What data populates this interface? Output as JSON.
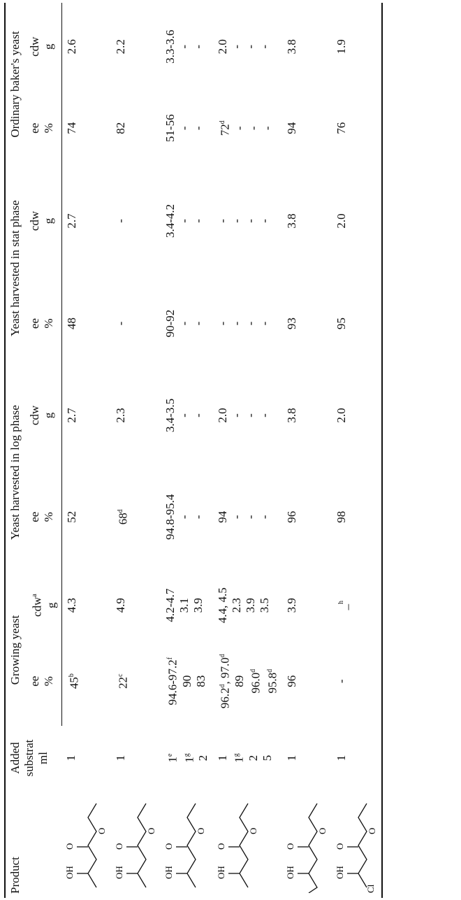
{
  "header": {
    "product": "Product",
    "substrate": [
      "Added",
      "substrat",
      "ml"
    ],
    "groups": [
      {
        "title": "Growing yeast",
        "ee": [
          "ee",
          "%"
        ],
        "cdw": [
          {
            "text": "cdw",
            "sup": "a"
          },
          "g"
        ]
      },
      {
        "title": "Yeast harvested in log phase",
        "ee": [
          "ee",
          "%"
        ],
        "cdw": [
          "cdw",
          "g"
        ]
      },
      {
        "title": "Yeast harvested in stat phase",
        "ee": [
          "ee",
          "%"
        ],
        "cdw": [
          "cdw",
          "g"
        ]
      },
      {
        "title": "Ordinary baker's yeast",
        "ee": [
          "ee",
          "%"
        ],
        "cdw": [
          "cdw",
          "g"
        ]
      }
    ]
  },
  "rows": [
    {
      "product": [
        "OH",
        "O",
        "O"
      ],
      "cells": [
        [
          "1"
        ],
        [
          {
            "text": "45",
            "sup": "b"
          }
        ],
        [
          "4.3"
        ],
        [
          "52"
        ],
        [
          "2.7"
        ],
        [
          "48"
        ],
        [
          "2.7"
        ],
        [
          "74"
        ],
        [
          "2.6"
        ]
      ]
    },
    {
      "product": [
        "OH",
        "O",
        "O"
      ],
      "cells": [
        [
          "1"
        ],
        [
          {
            "text": "22",
            "sup": "c"
          }
        ],
        [
          "4.9"
        ],
        [
          {
            "text": "68",
            "sup": "d"
          }
        ],
        [
          "2.3"
        ],
        [
          "-"
        ],
        [
          "-"
        ],
        [
          "82"
        ],
        [
          "2.2"
        ]
      ]
    },
    {
      "product": [
        "OH",
        "O",
        "O"
      ],
      "cells": [
        [
          {
            "text": "1",
            "sup": "e"
          },
          {
            "text": "1",
            "sup": "g"
          },
          "2"
        ],
        [
          {
            "text": "94.6-97.2",
            "sup": "f"
          },
          "90",
          "83"
        ],
        [
          "4.2-4.7",
          "3.1",
          "3.9"
        ],
        [
          "94.8-95.4",
          "-",
          "-"
        ],
        [
          "3.4-3.5",
          "-",
          "-"
        ],
        [
          "90-92",
          "-",
          "-"
        ],
        [
          "3.4-4.2",
          "-",
          "-"
        ],
        [
          "51-56",
          "-",
          "-"
        ],
        [
          "3.3-3.6",
          "-",
          "-"
        ]
      ]
    },
    {
      "product": [
        "OH",
        "O",
        "O"
      ],
      "cells": [
        [
          "1",
          {
            "text": "1",
            "sup": "g"
          },
          "2",
          "5"
        ],
        [
          [
            {
              "text": "96.2",
              "sup": "d"
            },
            {
              "text": ", 97.0",
              "sup": "d"
            }
          ],
          "89",
          {
            "text": "96.0",
            "sup": "d"
          },
          {
            "text": "95.8",
            "sup": "d"
          }
        ],
        [
          "4.4, 4.5",
          "2.3",
          "3.9",
          "3.5"
        ],
        [
          "94",
          "-",
          "-",
          "-"
        ],
        [
          "2.0",
          "-",
          "-",
          "-"
        ],
        [
          "-",
          "-",
          "-",
          "-"
        ],
        [
          "-",
          "-",
          "-",
          "-"
        ],
        [
          {
            "text": "72",
            "sup": "d"
          },
          "-",
          "-",
          "-"
        ],
        [
          "2.0",
          "-",
          "-",
          "-"
        ]
      ]
    },
    {
      "product": [
        "OH",
        "O",
        "O"
      ],
      "cells": [
        [
          "1"
        ],
        [
          "96"
        ],
        [
          "3.9"
        ],
        [
          "96"
        ],
        [
          "3.8"
        ],
        [
          "93"
        ],
        [
          "3.8"
        ],
        [
          "94"
        ],
        [
          "3.8"
        ]
      ]
    },
    {
      "product": [
        "Cl",
        "OH",
        "O",
        "O"
      ],
      "cells": [
        [
          "1"
        ],
        [
          "-"
        ],
        [
          {
            "text": "_",
            "sup": "h"
          }
        ],
        [
          "98"
        ],
        [
          "2.0"
        ],
        [
          "95"
        ],
        [
          "2.0"
        ],
        [
          "76"
        ],
        [
          "1.9"
        ]
      ]
    }
  ]
}
